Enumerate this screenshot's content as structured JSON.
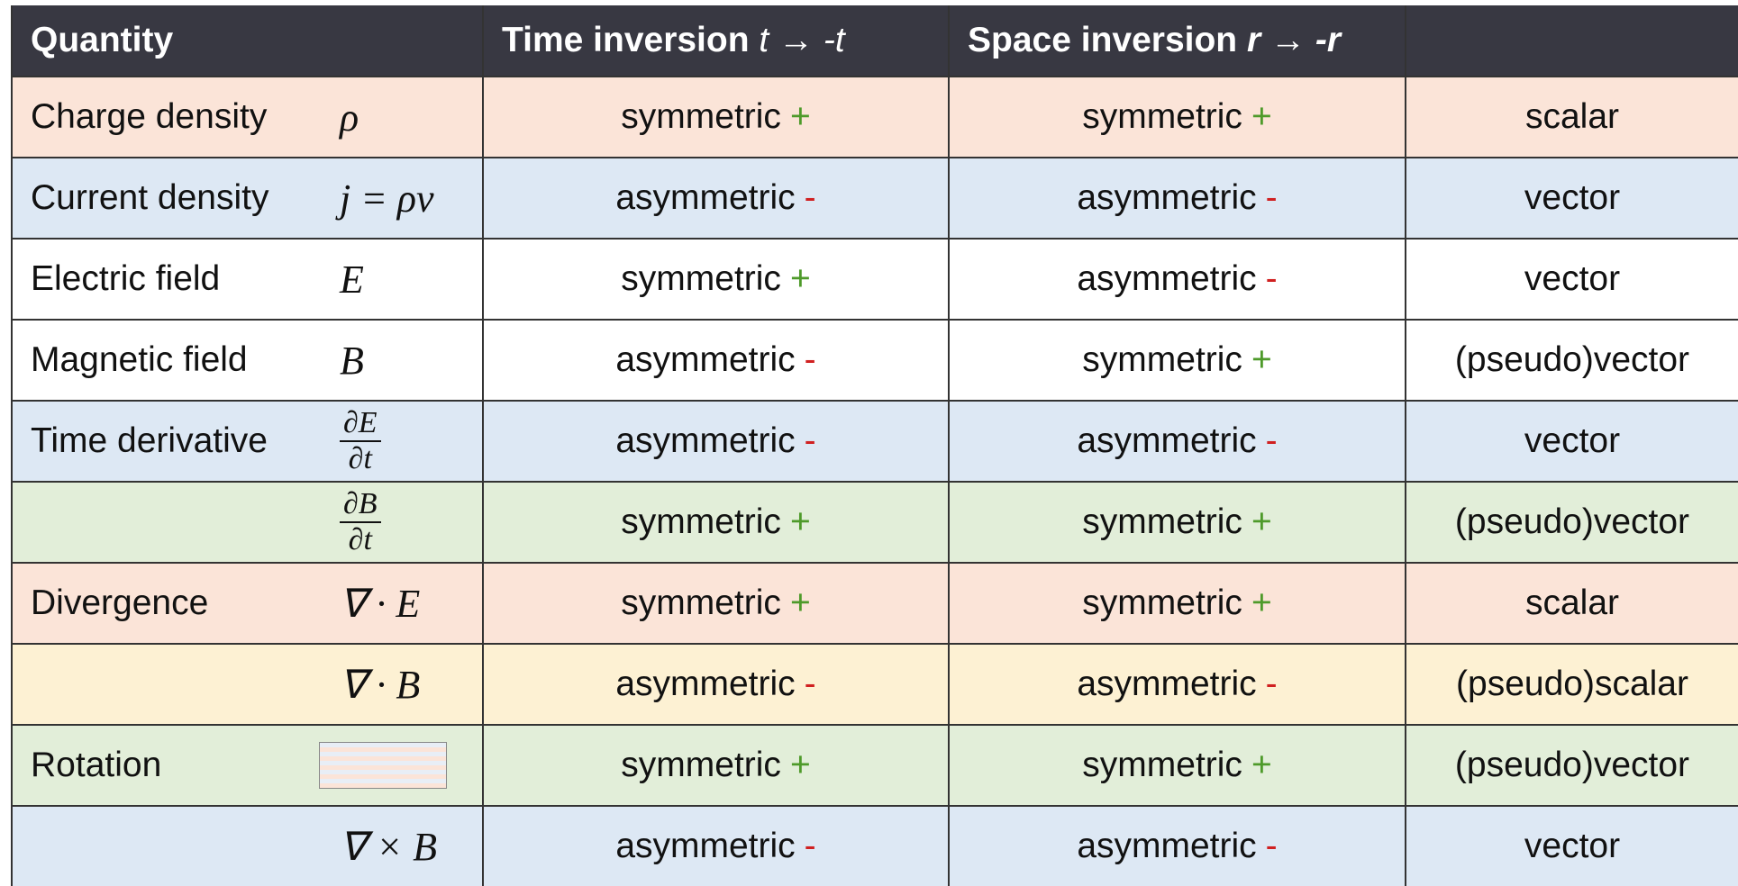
{
  "header": {
    "quantity": "Quantity",
    "time": {
      "label": "Time inversion",
      "math": "t → -t"
    },
    "space": {
      "label": "Space inversion",
      "math": "r → -r"
    }
  },
  "rows": [
    {
      "name": "Charge density",
      "symbol": "ρ",
      "time": {
        "word": "symmetric",
        "sign": "+"
      },
      "space": {
        "word": "symmetric",
        "sign": "+"
      },
      "type": "scalar",
      "bg": "#fbe4d8"
    },
    {
      "name": "Current density",
      "symbol": "j = ρv",
      "time": {
        "word": "asymmetric",
        "sign": "-"
      },
      "space": {
        "word": "asymmetric",
        "sign": "-"
      },
      "type": "vector",
      "bg": "#dde8f4"
    },
    {
      "name": "Electric field",
      "symbol": "E",
      "time": {
        "word": "symmetric",
        "sign": "+"
      },
      "space": {
        "word": "asymmetric",
        "sign": "-"
      },
      "type": "vector",
      "bg": "#ffffff"
    },
    {
      "name": "Magnetic field",
      "symbol": "B",
      "time": {
        "word": "asymmetric",
        "sign": "-"
      },
      "space": {
        "word": "symmetric",
        "sign": "+"
      },
      "type": "(pseudo)vector",
      "bg": "#ffffff"
    },
    {
      "name": "Time derivative",
      "fraction": {
        "num": "∂E",
        "den": "∂t"
      },
      "time": {
        "word": "asymmetric",
        "sign": "-"
      },
      "space": {
        "word": "asymmetric",
        "sign": "-"
      },
      "type": "vector",
      "bg": "#dde8f4"
    },
    {
      "fraction": {
        "num": "∂B",
        "den": "∂t"
      },
      "time": {
        "word": "symmetric",
        "sign": "+"
      },
      "space": {
        "word": "symmetric",
        "sign": "+"
      },
      "type": "(pseudo)vector",
      "bg": "#e2eed9"
    },
    {
      "name": "Divergence",
      "symbol": "∇ · E",
      "time": {
        "word": "symmetric",
        "sign": "+"
      },
      "space": {
        "word": "symmetric",
        "sign": "+"
      },
      "type": "scalar",
      "bg": "#fbe4d8"
    },
    {
      "symbol": "∇ · B",
      "time": {
        "word": "asymmetric",
        "sign": "-"
      },
      "space": {
        "word": "asymmetric",
        "sign": "-"
      },
      "type": "(pseudo)scalar",
      "bg": "#fdf1d3"
    },
    {
      "name": "Rotation",
      "time": {
        "word": "symmetric",
        "sign": "+"
      },
      "space": {
        "word": "symmetric",
        "sign": "+"
      },
      "type": "(pseudo)vector",
      "bg": "#e2eed9"
    },
    {
      "symbol": "∇ × B",
      "time": {
        "word": "asymmetric",
        "sign": "-"
      },
      "space": {
        "word": "asymmetric",
        "sign": "-"
      },
      "type": "vector",
      "bg": "#dde8f4"
    }
  ]
}
